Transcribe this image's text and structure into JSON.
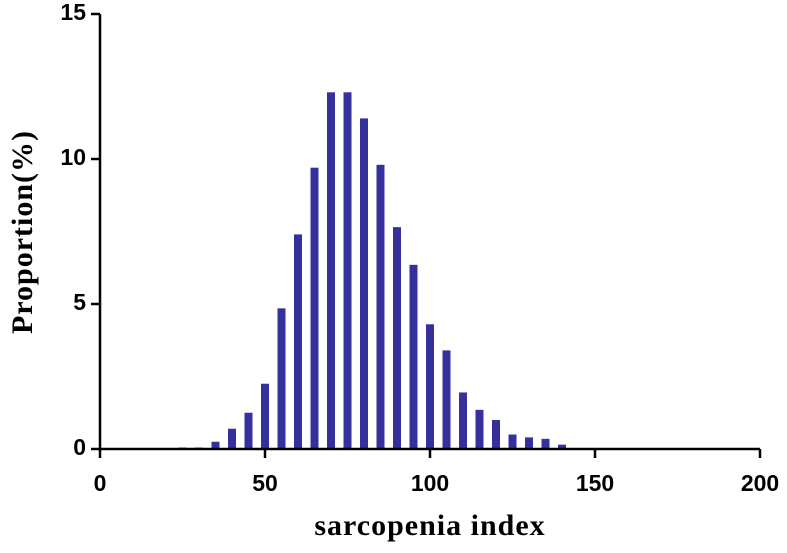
{
  "chart_data": {
    "type": "bar",
    "x_label": "sarcopenia index",
    "y_label": "Proportion(%)",
    "x": [
      25,
      30,
      35,
      40,
      45,
      50,
      55,
      60,
      65,
      70,
      75,
      80,
      85,
      90,
      95,
      100,
      105,
      110,
      115,
      120,
      125,
      130,
      135,
      140
    ],
    "values": [
      0.05,
      0.05,
      0.25,
      0.7,
      1.25,
      2.25,
      4.85,
      7.4,
      9.7,
      12.3,
      12.3,
      11.4,
      9.8,
      7.65,
      6.35,
      4.3,
      3.4,
      1.95,
      1.35,
      1.0,
      0.5,
      0.4,
      0.35,
      0.15
    ],
    "color": "#35309c",
    "xlim": [
      0,
      200
    ],
    "xticks": [
      0,
      50,
      100,
      150,
      200
    ],
    "ylim": [
      0,
      15
    ],
    "yticks": [
      0,
      5,
      10,
      15
    ]
  }
}
